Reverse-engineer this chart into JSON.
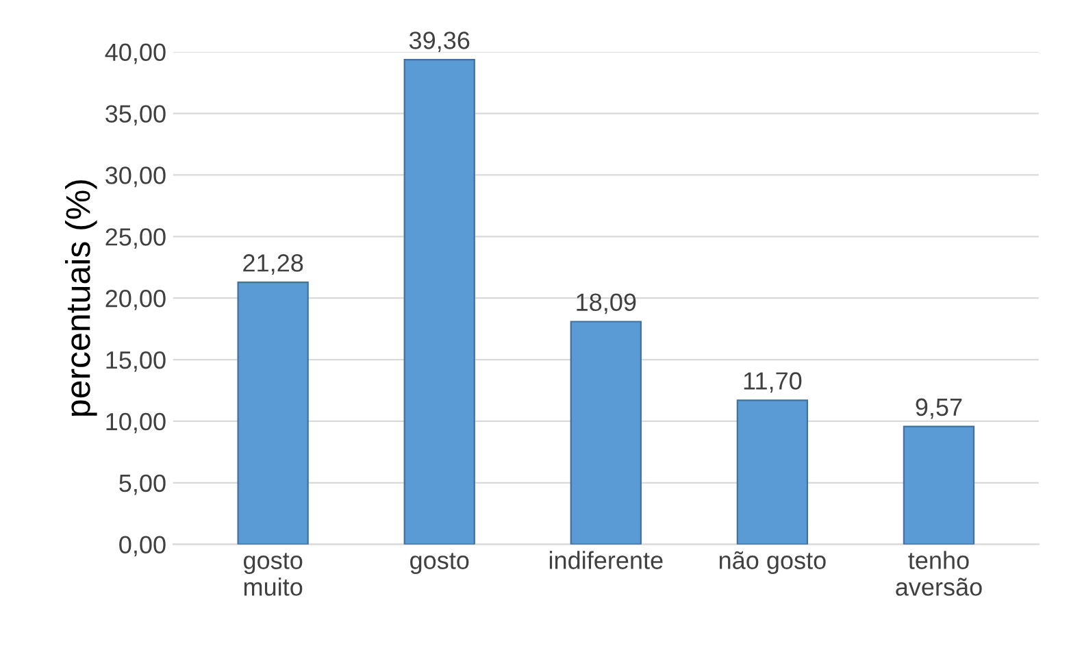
{
  "chart_data": {
    "type": "bar",
    "ylabel": "percentuais (%)",
    "categories": [
      "gosto\nmuito",
      "gosto",
      "indiferente",
      "não gosto",
      "tenho\naversão"
    ],
    "values": [
      21.28,
      39.36,
      18.09,
      11.7,
      9.57
    ],
    "value_labels": [
      "21,28",
      "39,36",
      "18,09",
      "11,70",
      "9,57"
    ],
    "color": "#5b9bd5",
    "ylim": [
      0,
      40
    ],
    "yticks": [
      {
        "value": 0,
        "label": "0,00"
      },
      {
        "value": 5,
        "label": "5,00"
      },
      {
        "value": 10,
        "label": "10,00"
      },
      {
        "value": 15,
        "label": "15,00"
      },
      {
        "value": 20,
        "label": "20,00"
      },
      {
        "value": 25,
        "label": "25,00"
      },
      {
        "value": 30,
        "label": "30,00"
      },
      {
        "value": 35,
        "label": "35,00"
      },
      {
        "value": 40,
        "label": "40,00"
      }
    ],
    "grid": "y"
  }
}
